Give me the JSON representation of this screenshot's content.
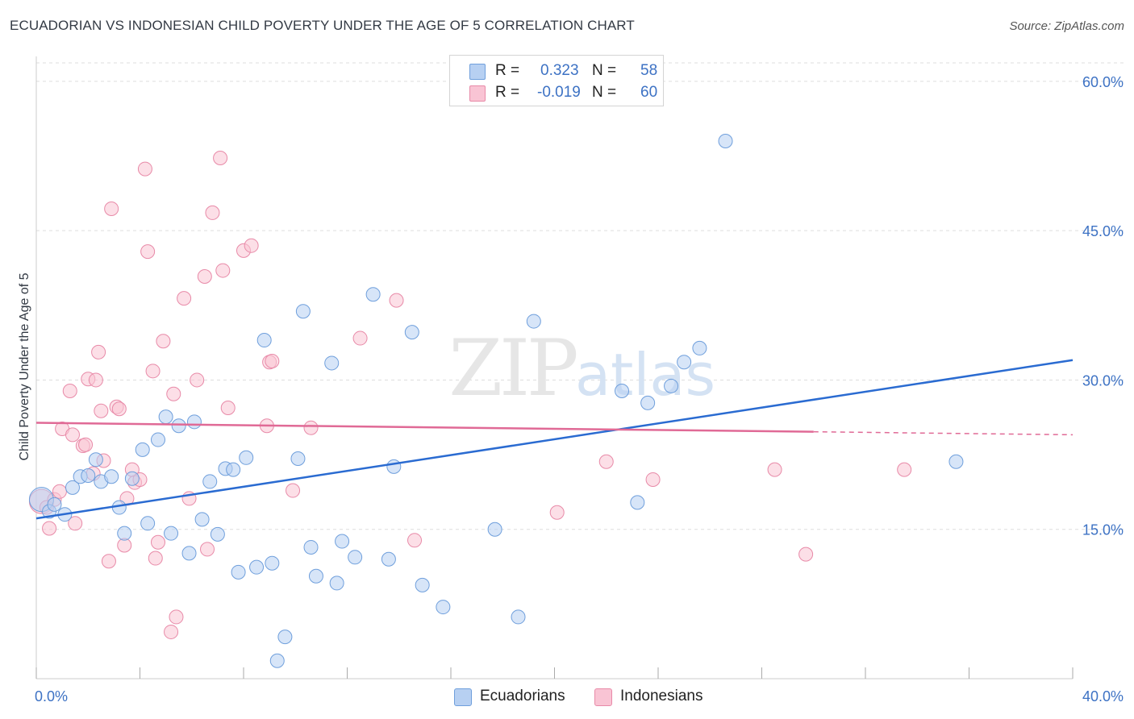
{
  "title": "ECUADORIAN VS INDONESIAN CHILD POVERTY UNDER THE AGE OF 5 CORRELATION CHART",
  "source": "Source: ZipAtlas.com",
  "watermark": {
    "zip": "ZIP",
    "atlas": "atlas"
  },
  "colors": {
    "blue_fill": "#b7d0f2",
    "blue_stroke": "#6f9fdc",
    "blue_line": "#2a6bd1",
    "pink_fill": "#f9c4d4",
    "pink_stroke": "#e88aa8",
    "pink_line": "#e06a96",
    "tick_text": "#3d72c4",
    "grid": "#dddddd"
  },
  "stats": [
    {
      "r_label": "R =",
      "r_value": "0.323",
      "n_label": "N =",
      "n_value": "58",
      "color": "#b7d0f2",
      "stroke": "#6f9fdc"
    },
    {
      "r_label": "R =",
      "r_value": "-0.019",
      "n_label": "N =",
      "n_value": "60",
      "color": "#f9c4d4",
      "stroke": "#e88aa8"
    }
  ],
  "legend": [
    {
      "label": "Ecuadorians",
      "color": "#b7d0f2",
      "stroke": "#6f9fdc"
    },
    {
      "label": "Indonesians",
      "color": "#f9c4d4",
      "stroke": "#e88aa8"
    }
  ],
  "chart_data": {
    "type": "scatter",
    "title": "ECUADORIAN VS INDONESIAN CHILD POVERTY UNDER THE AGE OF 5 CORRELATION CHART",
    "xlabel": "",
    "ylabel": "Child Poverty Under the Age of 5",
    "xlim": [
      0,
      40
    ],
    "ylim": [
      0,
      62.5
    ],
    "x_tick_labels": [
      "0.0%",
      "40.0%"
    ],
    "y_ticks": [
      15,
      30,
      45,
      60
    ],
    "y_tick_labels": [
      "15.0%",
      "30.0%",
      "45.0%",
      "60.0%"
    ],
    "grid": true,
    "legend_position": "bottom-center",
    "series": [
      {
        "name": "Ecuadorians",
        "trend": {
          "x": [
            0,
            40
          ],
          "y": [
            16.1,
            32.0
          ],
          "dashed_from": null
        },
        "points": [
          [
            0.2,
            18.0
          ],
          [
            0.5,
            16.8
          ],
          [
            0.7,
            17.5
          ],
          [
            1.1,
            16.5
          ],
          [
            1.4,
            19.2
          ],
          [
            1.7,
            20.3
          ],
          [
            2.0,
            20.4
          ],
          [
            2.3,
            22.0
          ],
          [
            2.5,
            19.8
          ],
          [
            2.9,
            20.3
          ],
          [
            3.2,
            17.2
          ],
          [
            3.4,
            14.6
          ],
          [
            3.7,
            20.1
          ],
          [
            4.1,
            23.0
          ],
          [
            4.3,
            15.6
          ],
          [
            4.7,
            24.0
          ],
          [
            5.0,
            26.3
          ],
          [
            5.2,
            14.6
          ],
          [
            5.5,
            25.4
          ],
          [
            5.9,
            12.6
          ],
          [
            6.1,
            25.8
          ],
          [
            6.4,
            16.0
          ],
          [
            6.7,
            19.8
          ],
          [
            7.0,
            14.5
          ],
          [
            7.3,
            21.1
          ],
          [
            7.6,
            21.0
          ],
          [
            7.8,
            10.7
          ],
          [
            8.1,
            22.2
          ],
          [
            8.5,
            11.2
          ],
          [
            8.8,
            34.0
          ],
          [
            9.1,
            11.6
          ],
          [
            9.3,
            1.8
          ],
          [
            9.6,
            4.2
          ],
          [
            10.1,
            22.1
          ],
          [
            10.3,
            36.9
          ],
          [
            10.6,
            13.2
          ],
          [
            10.8,
            10.3
          ],
          [
            11.4,
            31.7
          ],
          [
            11.6,
            9.6
          ],
          [
            11.8,
            13.8
          ],
          [
            12.3,
            12.2
          ],
          [
            13.0,
            38.6
          ],
          [
            13.6,
            12.0
          ],
          [
            13.8,
            21.3
          ],
          [
            14.5,
            34.8
          ],
          [
            14.9,
            9.4
          ],
          [
            15.7,
            7.2
          ],
          [
            17.7,
            15.0
          ],
          [
            18.6,
            6.2
          ],
          [
            19.2,
            35.9
          ],
          [
            22.6,
            28.9
          ],
          [
            23.2,
            17.7
          ],
          [
            23.6,
            27.7
          ],
          [
            24.5,
            29.4
          ],
          [
            25.0,
            31.8
          ],
          [
            25.6,
            33.2
          ],
          [
            26.6,
            54.0
          ],
          [
            35.5,
            21.8
          ]
        ]
      },
      {
        "name": "Indonesians",
        "trend": {
          "x": [
            0,
            40
          ],
          "y": [
            25.7,
            24.5
          ],
          "dashed_from": 30
        },
        "points": [
          [
            0.2,
            17.8
          ],
          [
            0.4,
            17.2
          ],
          [
            0.5,
            15.1
          ],
          [
            0.7,
            18.0
          ],
          [
            0.9,
            18.8
          ],
          [
            1.0,
            25.1
          ],
          [
            1.3,
            28.9
          ],
          [
            1.4,
            24.5
          ],
          [
            1.5,
            15.6
          ],
          [
            1.8,
            23.4
          ],
          [
            1.9,
            23.5
          ],
          [
            2.0,
            30.1
          ],
          [
            2.2,
            20.6
          ],
          [
            2.3,
            30.0
          ],
          [
            2.4,
            32.8
          ],
          [
            2.5,
            26.9
          ],
          [
            2.6,
            21.9
          ],
          [
            2.8,
            11.8
          ],
          [
            2.9,
            47.2
          ],
          [
            3.1,
            27.3
          ],
          [
            3.2,
            27.1
          ],
          [
            3.4,
            13.4
          ],
          [
            3.5,
            18.1
          ],
          [
            3.7,
            21.0
          ],
          [
            3.8,
            19.7
          ],
          [
            4.0,
            20.0
          ],
          [
            4.2,
            51.2
          ],
          [
            4.3,
            42.9
          ],
          [
            4.5,
            30.9
          ],
          [
            4.6,
            12.1
          ],
          [
            4.7,
            13.7
          ],
          [
            4.9,
            33.9
          ],
          [
            5.2,
            4.7
          ],
          [
            5.3,
            28.6
          ],
          [
            5.4,
            6.2
          ],
          [
            5.7,
            38.2
          ],
          [
            5.9,
            18.1
          ],
          [
            6.2,
            30.0
          ],
          [
            6.5,
            40.4
          ],
          [
            6.6,
            13.0
          ],
          [
            6.8,
            46.8
          ],
          [
            7.1,
            52.3
          ],
          [
            7.2,
            41.0
          ],
          [
            7.4,
            27.2
          ],
          [
            8.0,
            43.0
          ],
          [
            8.3,
            43.5
          ],
          [
            8.9,
            25.4
          ],
          [
            9.0,
            31.8
          ],
          [
            9.1,
            31.9
          ],
          [
            9.9,
            18.9
          ],
          [
            10.6,
            25.2
          ],
          [
            12.5,
            34.2
          ],
          [
            13.9,
            38.0
          ],
          [
            14.6,
            13.9
          ],
          [
            20.1,
            16.7
          ],
          [
            23.8,
            20.0
          ],
          [
            28.5,
            21.0
          ],
          [
            29.7,
            12.5
          ],
          [
            33.5,
            21.0
          ],
          [
            22.0,
            21.8
          ]
        ]
      }
    ]
  }
}
